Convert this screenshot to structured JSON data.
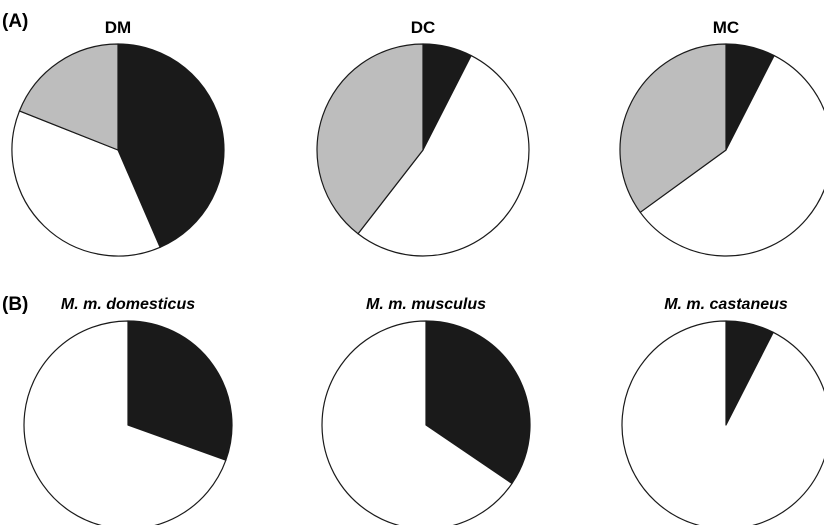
{
  "panels": [
    {
      "label": "(A)"
    },
    {
      "label": "(B)"
    }
  ],
  "colors": {
    "black": "#1a1a1a",
    "gray": "#bdbdbd",
    "white": "#ffffff",
    "outline": "#1a1a1a"
  },
  "chart_data": [
    {
      "type": "pie",
      "panel": "(A)",
      "title": "DM",
      "title_style": "bold",
      "slices": [
        {
          "color": "black",
          "value": 43.5
        },
        {
          "color": "white",
          "value": 37.5
        },
        {
          "color": "gray",
          "value": 19.0
        }
      ]
    },
    {
      "type": "pie",
      "panel": "(A)",
      "title": "DC",
      "title_style": "bold",
      "slices": [
        {
          "color": "black",
          "value": 7.5
        },
        {
          "color": "white",
          "value": 53.0
        },
        {
          "color": "gray",
          "value": 39.5
        }
      ]
    },
    {
      "type": "pie",
      "panel": "(A)",
      "title": "MC",
      "title_style": "bold",
      "slices": [
        {
          "color": "black",
          "value": 7.5
        },
        {
          "color": "white",
          "value": 57.5
        },
        {
          "color": "gray",
          "value": 35.0
        }
      ]
    },
    {
      "type": "pie",
      "panel": "(B)",
      "title": "M. m. domesticus",
      "title_style": "italic",
      "slices": [
        {
          "color": "black",
          "value": 30.5
        },
        {
          "color": "white",
          "value": 69.5
        }
      ]
    },
    {
      "type": "pie",
      "panel": "(B)",
      "title": "M. m. musculus",
      "title_style": "italic",
      "slices": [
        {
          "color": "black",
          "value": 34.5
        },
        {
          "color": "white",
          "value": 65.5
        }
      ]
    },
    {
      "type": "pie",
      "panel": "(B)",
      "title": "M. m. castaneus",
      "title_style": "italic",
      "slices": [
        {
          "color": "black",
          "value": 7.5
        },
        {
          "color": "white",
          "value": 92.5
        }
      ]
    }
  ]
}
